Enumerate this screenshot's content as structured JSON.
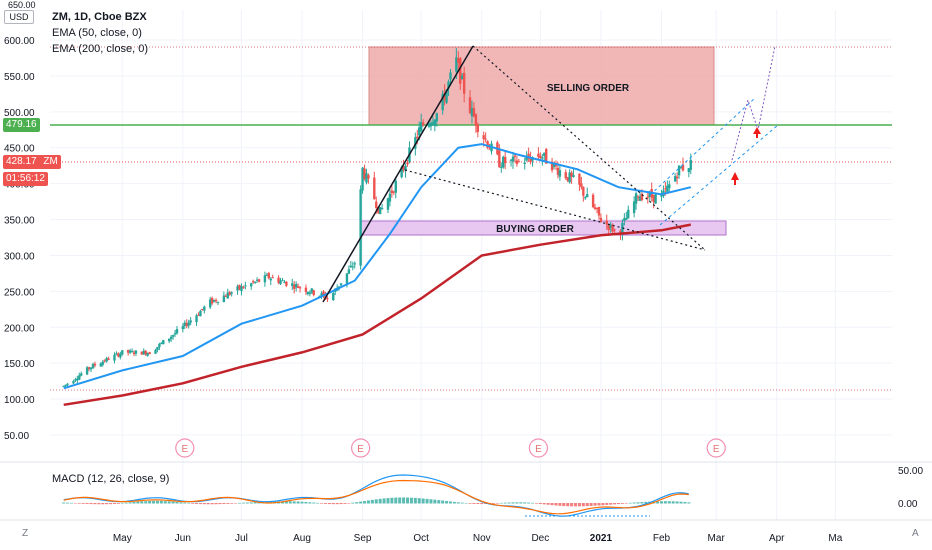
{
  "header": {
    "symbol_line": "ZM, 1D, Cboe BZX",
    "ema50_label": "EMA (50, close, 0)",
    "ema200_label": "EMA (200, close, 0)",
    "currency": "USD"
  },
  "price_labels": {
    "resistance": "479.16",
    "last_price": "428.17",
    "ticker": "ZM",
    "countdown": "01:56:12",
    "top_cut": "650.00"
  },
  "annotations": {
    "selling": "SELLING ORDER",
    "buying": "BUYING ORDER",
    "earnings_marker": "E"
  },
  "macd": {
    "label": "MACD (12, 26, close, 9)",
    "ticks": [
      "50.00",
      "0.00"
    ]
  },
  "footer": {
    "left_button": "Z",
    "right_button": "A"
  },
  "colors": {
    "up": "#26a69a",
    "down": "#ef5350",
    "ema50": "#2196f3",
    "ema200": "#c2232b",
    "resistance": "#4caf50",
    "selling_zone": "#eeaaaa",
    "buying_zone": "#e8c8f0",
    "macd_line": "#2196f3",
    "signal_line": "#ff6d00"
  },
  "chart_data": {
    "type": "candlestick",
    "title": "ZM, 1D, Cboe BZX",
    "y_axis_ticks": [
      "600.00",
      "550.00",
      "500.00",
      "450.00",
      "400.00",
      "350.00",
      "300.00",
      "250.00",
      "200.00",
      "150.00",
      "100.00",
      "50.00"
    ],
    "ylim": [
      20,
      620
    ],
    "x_axis_ticks": [
      "May",
      "Jun",
      "Jul",
      "Aug",
      "Sep",
      "Oct",
      "Nov",
      "Dec",
      "2021",
      "Feb",
      "Mar",
      "Apr",
      "Ma"
    ],
    "resistance_level": 479.16,
    "last_price": 428.17,
    "selling_zone": {
      "from": "2020-09-01",
      "to": "2021-02-01",
      "low": 479,
      "high": 590
    },
    "buying_zone": {
      "from": "2020-08-28",
      "to": "2021-02-15",
      "low": 325,
      "high": 345
    },
    "close_series": {
      "x": [
        "2020-04-01",
        "2020-04-15",
        "2020-05-01",
        "2020-05-15",
        "2020-06-01",
        "2020-06-15",
        "2020-07-01",
        "2020-07-15",
        "2020-08-01",
        "2020-08-15",
        "2020-08-28",
        "2020-09-01",
        "2020-09-10",
        "2020-09-20",
        "2020-10-01",
        "2020-10-10",
        "2020-10-19",
        "2020-10-25",
        "2020-11-01",
        "2020-11-10",
        "2020-11-20",
        "2020-12-01",
        "2020-12-10",
        "2020-12-20",
        "2021-01-01",
        "2021-01-10",
        "2021-01-20",
        "2021-02-01",
        "2021-02-10",
        "2021-02-16"
      ],
      "values": [
        118,
        145,
        165,
        165,
        200,
        235,
        255,
        270,
        255,
        240,
        290,
        420,
        360,
        410,
        480,
        500,
        570,
        510,
        470,
        430,
        430,
        440,
        420,
        400,
        350,
        330,
        385,
        380,
        420,
        428
      ]
    },
    "ema50": {
      "x": [
        "2020-04-01",
        "2020-05-01",
        "2020-06-01",
        "2020-07-01",
        "2020-08-01",
        "2020-08-28",
        "2020-09-15",
        "2020-10-01",
        "2020-10-20",
        "2020-11-01",
        "2020-11-20",
        "2020-12-05",
        "2020-12-20",
        "2021-01-10",
        "2021-02-01",
        "2021-02-16"
      ],
      "values": [
        115,
        140,
        160,
        205,
        230,
        265,
        330,
        395,
        450,
        455,
        440,
        430,
        420,
        395,
        385,
        395
      ]
    },
    "ema200": {
      "x": [
        "2020-04-01",
        "2020-05-01",
        "2020-06-01",
        "2020-07-01",
        "2020-08-01",
        "2020-09-01",
        "2020-10-01",
        "2020-11-01",
        "2020-12-01",
        "2021-01-01",
        "2021-02-01",
        "2021-02-16"
      ],
      "values": [
        92,
        105,
        122,
        145,
        165,
        190,
        240,
        300,
        315,
        328,
        335,
        343
      ]
    },
    "earnings_dates": [
      "2020-06-02",
      "2020-08-31",
      "2020-11-30",
      "2021-03-01"
    ],
    "macd_ticks": [
      50,
      0
    ]
  }
}
